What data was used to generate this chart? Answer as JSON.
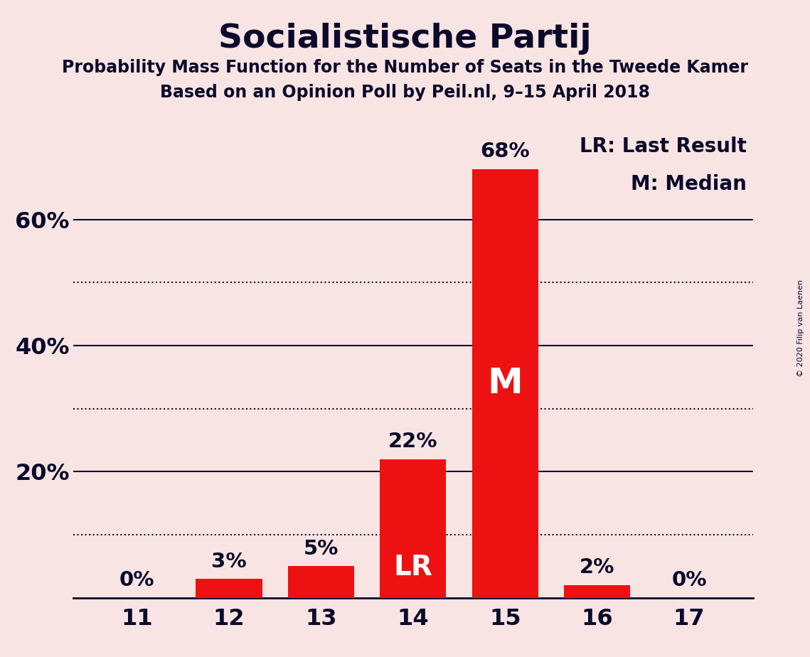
{
  "title": "Socialistische Partij",
  "subtitle1": "Probability Mass Function for the Number of Seats in the Tweede Kamer",
  "subtitle2": "Based on an Opinion Poll by Peil.nl, 9–15 April 2018",
  "copyright": "© 2020 Filip van Laenen",
  "categories": [
    11,
    12,
    13,
    14,
    15,
    16,
    17
  ],
  "values": [
    0,
    3,
    5,
    22,
    68,
    2,
    0
  ],
  "bar_color": "#ee1111",
  "background_color": "#f9e4e4",
  "text_color": "#0a0a2a",
  "label_LR": "LR",
  "label_M": "M",
  "LR_bar": 14,
  "M_bar": 15,
  "ylim": [
    0,
    75
  ],
  "solid_lines": [
    20,
    40,
    60
  ],
  "dotted_lines": [
    10,
    30,
    50
  ],
  "ytick_positions": [
    20,
    40,
    60
  ],
  "ytick_labels": [
    "20%",
    "40%",
    "60%"
  ],
  "legend_text1": "LR: Last Result",
  "legend_text2": "M: Median"
}
